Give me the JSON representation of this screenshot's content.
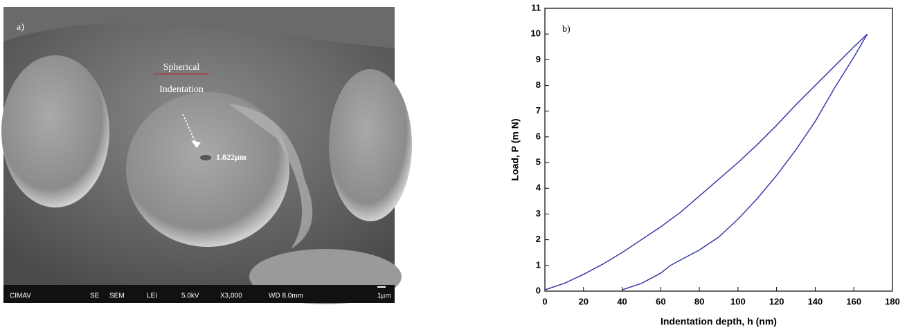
{
  "image_panel": {
    "label": "a)",
    "annotation": [
      "Spherical",
      "Indentation"
    ],
    "measurement": "1.822µm",
    "info_bar": [
      "CIMAV",
      "SE",
      "SEM",
      "LEI",
      "5.0kV",
      "X3,000",
      "WD 8.0mm",
      "1µm"
    ]
  },
  "chart_data": {
    "type": "line",
    "label": "b)",
    "x_label": "Indentation depth, h (nm)",
    "y_label": "Load, P (m N)",
    "x": [
      0,
      10,
      20,
      30,
      40,
      50,
      60,
      65,
      70,
      80,
      90,
      100,
      110,
      120,
      130,
      140,
      150,
      160,
      167
    ],
    "series": [
      {
        "color": "#3a3aa8",
        "values": [
          0.05,
          0.3,
          0.65,
          1.05,
          1.5,
          2.0,
          2.5,
          2.78,
          3.05,
          3.7,
          4.35,
          5.0,
          5.7,
          6.45,
          7.25,
          8.0,
          8.75,
          9.5,
          10
        ]
      },
      {
        "color": "#3a3aa8",
        "values": [
          null,
          null,
          null,
          null,
          0.05,
          0.3,
          0.7,
          1.0,
          1.2,
          1.6,
          2.1,
          2.8,
          3.6,
          4.5,
          5.5,
          6.6,
          7.9,
          9.1,
          10
        ]
      }
    ],
    "xlim": [
      0,
      180
    ],
    "ylim": [
      0,
      11
    ],
    "xticks": [
      0,
      20,
      40,
      60,
      80,
      100,
      120,
      140,
      160,
      180
    ],
    "yticks": [
      0,
      1,
      2,
      3,
      4,
      5,
      6,
      7,
      8,
      9,
      10,
      11
    ]
  }
}
